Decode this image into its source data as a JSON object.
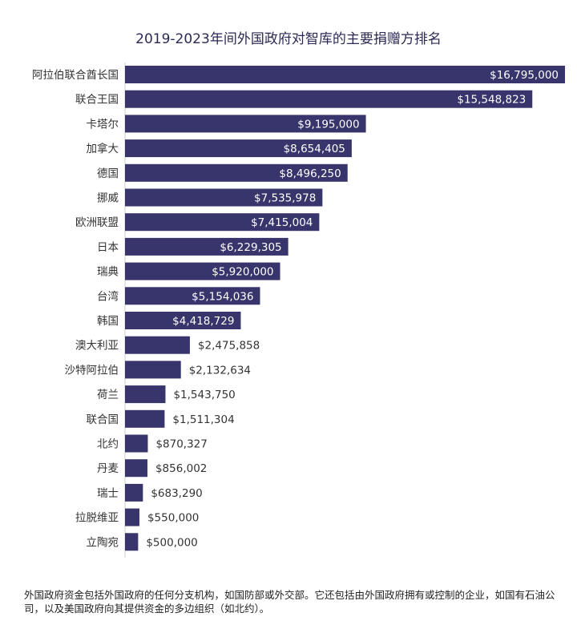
{
  "chart_data": {
    "type": "bar",
    "orientation": "horizontal",
    "title": "2019-2023年间外国政府对智库的主要捐赠方排名",
    "categories": [
      "阿拉伯联合酋长国",
      "联合王国",
      "卡塔尔",
      "加拿大",
      "德国",
      "挪威",
      "欧洲联盟",
      "日本",
      "瑞典",
      "台湾",
      "韩国",
      "澳大利亚",
      "沙特阿拉伯",
      "荷兰",
      "联合国",
      "北约",
      "丹麦",
      "瑞士",
      "拉脱维亚",
      "立陶宛"
    ],
    "values": [
      16795000,
      15548823,
      9195000,
      8654405,
      8496250,
      7535978,
      7415004,
      6229305,
      5920000,
      5154036,
      4418729,
      2475858,
      2132634,
      1543750,
      1511304,
      870327,
      856002,
      683290,
      550000,
      500000
    ],
    "data_labels": [
      "$16,795,000",
      "$15,548,823",
      "$9,195,000",
      "$8,654,405",
      "$8,496,250",
      "$7,535,978",
      "$7,415,004",
      "$6,229,305",
      "$5,920,000",
      "$5,154,036",
      "$4,418,729",
      "$2,475,858",
      "$2,132,634",
      "$1,543,750",
      "$1,511,304",
      "$870,327",
      "$856,002",
      "$683,290",
      "$550,000",
      "$500,000"
    ],
    "xlim": [
      0,
      16795000
    ],
    "grid": false,
    "bar_color": "#37356b",
    "label_inside_color": "#ffffff",
    "label_outside_color": "#333333"
  },
  "footnote": "外国政府资金包括外国政府的任何分支机构，如国防部或外交部。它还包括由外国政府拥有或控制的企业，如国有石油公司，以及美国政府向其提供资金的多边组织（如北约）。"
}
